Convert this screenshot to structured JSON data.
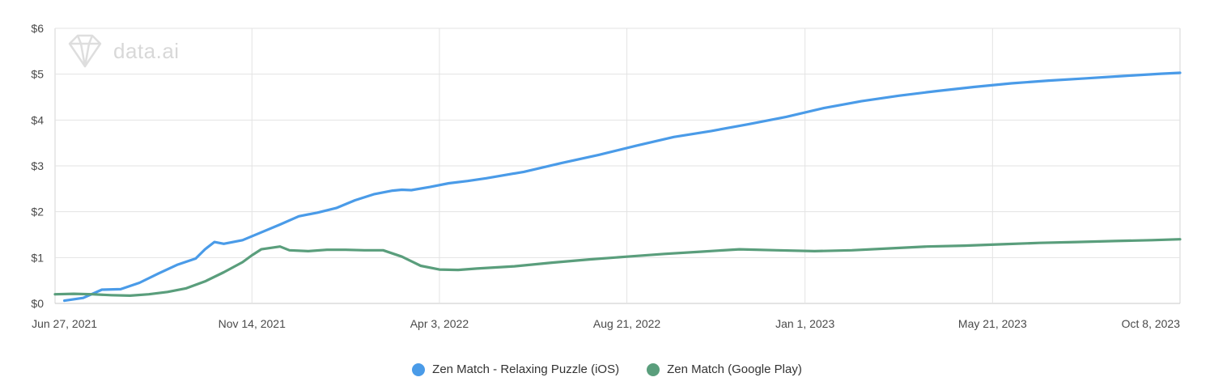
{
  "watermark": {
    "brand_text": "data.ai",
    "icon": "diamond-logo-icon"
  },
  "chart_data": {
    "type": "line",
    "title": "",
    "xlabel": "",
    "ylabel": "",
    "x_ticks": [
      "Jun 27, 2021",
      "Nov 14, 2021",
      "Apr 3, 2022",
      "Aug 21, 2022",
      "Jan 1, 2023",
      "May 21, 2023",
      "Oct 8, 2023"
    ],
    "y_ticks": [
      "$0",
      "$1",
      "$2",
      "$3",
      "$4",
      "$5",
      "$6"
    ],
    "ylim": [
      0,
      6
    ],
    "xlim": [
      "2021-06-20",
      "2023-10-08"
    ],
    "grid": true,
    "legend_position": "bottom",
    "series": [
      {
        "name": "Zen Match - Relaxing Puzzle (iOS)",
        "color": "#4a9be8",
        "points": [
          [
            "2021-06-27",
            0.06
          ],
          [
            "2021-07-11",
            0.12
          ],
          [
            "2021-07-25",
            0.3
          ],
          [
            "2021-08-08",
            0.31
          ],
          [
            "2021-08-22",
            0.45
          ],
          [
            "2021-09-05",
            0.65
          ],
          [
            "2021-09-19",
            0.84
          ],
          [
            "2021-10-03",
            0.98
          ],
          [
            "2021-10-10",
            1.18
          ],
          [
            "2021-10-17",
            1.34
          ],
          [
            "2021-10-24",
            1.3
          ],
          [
            "2021-11-07",
            1.38
          ],
          [
            "2021-11-21",
            1.55
          ],
          [
            "2021-12-05",
            1.72
          ],
          [
            "2021-12-19",
            1.9
          ],
          [
            "2022-01-02",
            1.98
          ],
          [
            "2022-01-16",
            2.08
          ],
          [
            "2022-01-30",
            2.25
          ],
          [
            "2022-02-13",
            2.38
          ],
          [
            "2022-02-27",
            2.46
          ],
          [
            "2022-03-06",
            2.48
          ],
          [
            "2022-03-13",
            2.47
          ],
          [
            "2022-03-27",
            2.54
          ],
          [
            "2022-04-10",
            2.62
          ],
          [
            "2022-04-24",
            2.67
          ],
          [
            "2022-05-08",
            2.73
          ],
          [
            "2022-06-05",
            2.87
          ],
          [
            "2022-07-03",
            3.06
          ],
          [
            "2022-07-31",
            3.24
          ],
          [
            "2022-08-28",
            3.44
          ],
          [
            "2022-09-25",
            3.63
          ],
          [
            "2022-10-23",
            3.76
          ],
          [
            "2022-11-20",
            3.91
          ],
          [
            "2022-12-18",
            4.07
          ],
          [
            "2023-01-15",
            4.26
          ],
          [
            "2023-02-12",
            4.41
          ],
          [
            "2023-03-12",
            4.53
          ],
          [
            "2023-04-09",
            4.63
          ],
          [
            "2023-05-07",
            4.72
          ],
          [
            "2023-06-04",
            4.8
          ],
          [
            "2023-07-02",
            4.86
          ],
          [
            "2023-07-30",
            4.91
          ],
          [
            "2023-08-27",
            4.96
          ],
          [
            "2023-09-24",
            5.01
          ],
          [
            "2023-10-08",
            5.03
          ]
        ]
      },
      {
        "name": "Zen Match (Google Play)",
        "color": "#5a9e7c",
        "points": [
          [
            "2021-06-20",
            0.2
          ],
          [
            "2021-07-04",
            0.21
          ],
          [
            "2021-07-18",
            0.2
          ],
          [
            "2021-08-01",
            0.18
          ],
          [
            "2021-08-15",
            0.17
          ],
          [
            "2021-08-29",
            0.2
          ],
          [
            "2021-09-12",
            0.25
          ],
          [
            "2021-09-26",
            0.33
          ],
          [
            "2021-10-10",
            0.48
          ],
          [
            "2021-10-24",
            0.68
          ],
          [
            "2021-11-07",
            0.9
          ],
          [
            "2021-11-14",
            1.05
          ],
          [
            "2021-11-21",
            1.18
          ],
          [
            "2021-12-05",
            1.24
          ],
          [
            "2021-12-12",
            1.16
          ],
          [
            "2021-12-26",
            1.14
          ],
          [
            "2022-01-09",
            1.17
          ],
          [
            "2022-01-23",
            1.17
          ],
          [
            "2022-02-06",
            1.16
          ],
          [
            "2022-02-20",
            1.16
          ],
          [
            "2022-03-06",
            1.02
          ],
          [
            "2022-03-20",
            0.82
          ],
          [
            "2022-04-03",
            0.74
          ],
          [
            "2022-04-17",
            0.73
          ],
          [
            "2022-05-01",
            0.76
          ],
          [
            "2022-05-29",
            0.81
          ],
          [
            "2022-06-26",
            0.89
          ],
          [
            "2022-07-24",
            0.96
          ],
          [
            "2022-08-21",
            1.02
          ],
          [
            "2022-09-18",
            1.08
          ],
          [
            "2022-10-16",
            1.13
          ],
          [
            "2022-11-13",
            1.18
          ],
          [
            "2022-12-11",
            1.16
          ],
          [
            "2023-01-08",
            1.14
          ],
          [
            "2023-02-05",
            1.16
          ],
          [
            "2023-03-05",
            1.2
          ],
          [
            "2023-04-02",
            1.24
          ],
          [
            "2023-04-30",
            1.26
          ],
          [
            "2023-05-28",
            1.29
          ],
          [
            "2023-06-25",
            1.32
          ],
          [
            "2023-07-23",
            1.34
          ],
          [
            "2023-08-20",
            1.36
          ],
          [
            "2023-09-17",
            1.38
          ],
          [
            "2023-10-08",
            1.4
          ]
        ]
      }
    ]
  }
}
